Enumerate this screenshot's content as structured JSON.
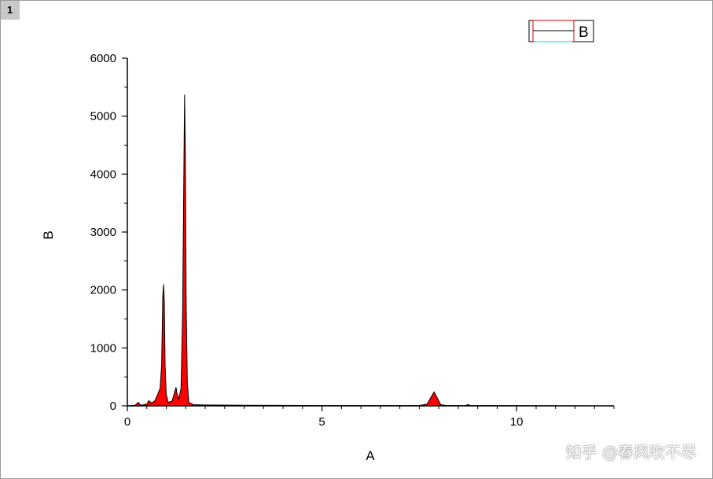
{
  "page_label": "1",
  "watermark": "知乎 @春风吹不尽",
  "chart_data": {
    "type": "area",
    "title": "",
    "xlabel": "A",
    "ylabel": "B",
    "xlim": [
      0,
      12.5
    ],
    "ylim": [
      0,
      6000
    ],
    "xticks": [
      0,
      5,
      10
    ],
    "xtick_labels": [
      "0",
      "5",
      "10"
    ],
    "yticks": [
      0,
      1000,
      2000,
      3000,
      4000,
      5000,
      6000
    ],
    "ytick_labels": [
      "0",
      "1000",
      "2000",
      "3000",
      "4000",
      "5000",
      "6000"
    ],
    "grid": false,
    "legend": {
      "position": "top-right",
      "entries": [
        "B"
      ]
    },
    "fill_color": "#ff0000",
    "line_color": "#000000",
    "series": [
      {
        "name": "B",
        "x": [
          0,
          0.2,
          0.28,
          0.35,
          0.5,
          0.55,
          0.62,
          0.7,
          0.78,
          0.84,
          0.88,
          0.91,
          0.93,
          0.95,
          0.97,
          1.0,
          1.05,
          1.15,
          1.22,
          1.25,
          1.28,
          1.32,
          1.38,
          1.42,
          1.45,
          1.47,
          1.49,
          1.51,
          1.54,
          1.58,
          1.7,
          2.0,
          3.0,
          4.0,
          5.0,
          7.5,
          7.7,
          7.8,
          7.88,
          7.95,
          8.05,
          8.2,
          8.7,
          8.75,
          8.8,
          12.5
        ],
        "y": [
          0,
          10,
          60,
          10,
          30,
          90,
          50,
          80,
          200,
          300,
          700,
          1900,
          2100,
          1800,
          700,
          200,
          60,
          80,
          250,
          320,
          200,
          120,
          300,
          1600,
          3900,
          5370,
          4300,
          1800,
          400,
          60,
          20,
          15,
          10,
          8,
          5,
          5,
          30,
          150,
          240,
          150,
          20,
          5,
          5,
          25,
          5,
          0
        ]
      }
    ]
  }
}
